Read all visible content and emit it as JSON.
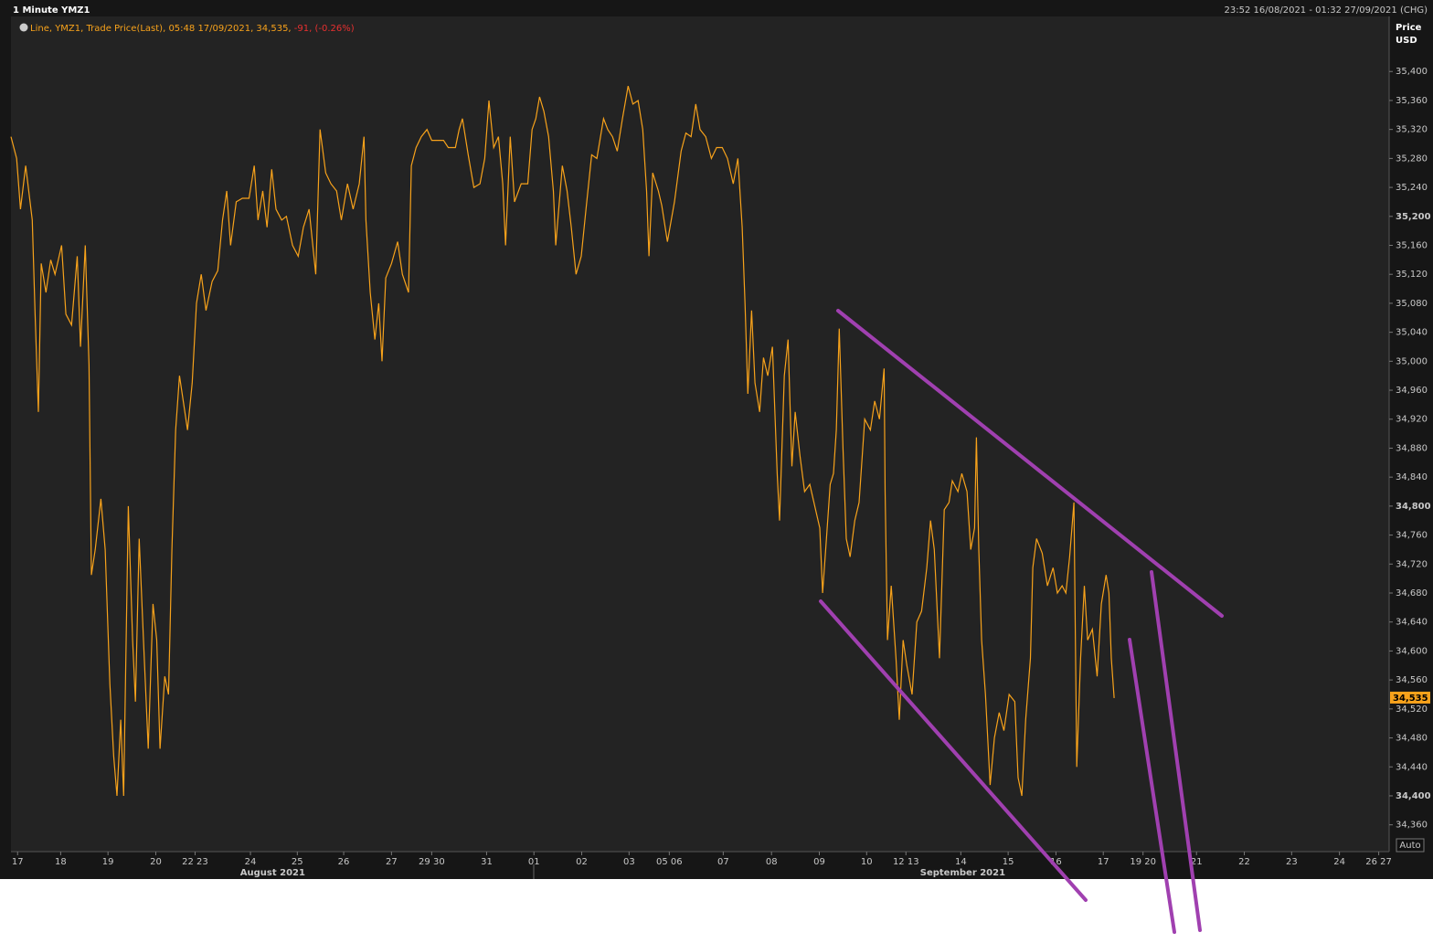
{
  "chart_data": {
    "type": "line",
    "title": "1 Minute YMZ1",
    "date_range": "23:52 16/08/2021 - 01:32 27/09/2021 (CHG)",
    "legend_change": "-91, (-0.26%)",
    "y_title": [
      "Price",
      "USD"
    ],
    "last_price_label": "34,535",
    "scale_button": "Auto",
    "x": [
      -0.14,
      -0.02,
      0.06,
      0.17,
      0.31,
      0.37,
      0.44,
      0.5,
      0.6,
      0.7,
      0.79,
      0.93,
      1.02,
      1.14,
      1.26,
      1.33,
      1.43,
      1.51,
      1.56,
      1.64,
      1.76,
      1.85,
      1.95,
      2.03,
      2.1,
      2.18,
      2.24,
      2.34,
      2.43,
      2.49,
      2.57,
      2.66,
      2.76,
      2.86,
      2.94,
      3.01,
      3.11,
      3.19,
      3.26,
      3.34,
      3.42,
      3.5,
      3.59,
      3.69,
      3.78,
      3.88,
      3.98,
      4.11,
      4.23,
      4.33,
      4.42,
      4.5,
      4.62,
      4.75,
      4.89,
      5.0,
      5.08,
      5.18,
      5.27,
      5.37,
      5.46,
      5.58,
      5.68,
      5.81,
      5.93,
      6.04,
      6.16,
      6.3,
      6.39,
      6.51,
      6.62,
      6.74,
      6.84,
      6.97,
      7.09,
      7.22,
      7.32,
      7.36,
      7.45,
      7.55,
      7.63,
      7.7,
      7.78,
      7.9,
      8.03,
      8.13,
      8.26,
      8.32,
      8.42,
      8.53,
      8.65,
      8.75,
      8.86,
      9.0,
      9.1,
      9.25,
      9.33,
      9.4,
      9.52,
      9.64,
      9.77,
      9.87,
      9.96,
      10.06,
      10.16,
      10.25,
      10.31,
      10.41,
      10.5,
      10.64,
      10.78,
      10.87,
      10.95,
      11.03,
      11.12,
      11.22,
      11.32,
      11.37,
      11.51,
      11.61,
      11.7,
      11.8,
      11.91,
      12.01,
      12.13,
      12.24,
      12.38,
      12.47,
      12.57,
      12.67,
      12.78,
      12.9,
      13.0,
      13.11,
      13.21,
      13.29,
      13.34,
      13.42,
      13.54,
      13.61,
      13.73,
      13.88,
      14.02,
      14.12,
      14.23,
      14.33,
      14.42,
      14.54,
      14.66,
      14.77,
      14.89,
      15.0,
      15.12,
      15.22,
      15.31,
      15.37,
      15.43,
      15.51,
      15.58,
      15.68,
      15.76,
      15.85,
      15.95,
      16.05,
      16.1,
      16.2,
      16.28,
      16.36,
      16.43,
      16.53,
      16.63,
      16.74,
      16.86,
      16.95,
      17.01,
      17.09,
      17.17,
      17.24,
      17.3,
      17.36,
      17.44,
      17.51,
      17.59,
      17.69,
      17.78,
      17.9,
      18.02,
      18.11,
      18.21,
      18.31,
      18.33,
      18.38,
      18.46,
      18.56,
      18.63,
      18.71,
      18.79,
      18.9,
      19.0,
      19.1,
      19.21,
      19.29,
      19.37,
      19.48,
      19.58,
      19.68,
      19.75,
      19.87,
      19.95,
      20.06,
      20.14,
      20.22,
      20.26,
      20.31,
      20.37,
      20.45,
      20.55,
      20.64,
      20.74,
      20.84,
      20.95,
      21.07,
      21.14,
      21.22,
      21.3,
      21.4,
      21.45,
      21.53,
      21.65,
      21.76,
      21.88,
      21.97,
      22.07,
      22.15,
      22.23,
      22.32,
      22.38,
      22.46,
      22.54,
      22.61,
      22.71,
      22.81,
      22.9,
      23.0,
      23.06,
      23.11,
      23.17
    ],
    "series": [
      {
        "name": "Line, YMZ1, Trade Price(Last), 05:48 17/09/2021, 34,535,",
        "color": "#f7a21b",
        "values": [
          35310,
          35280,
          35210,
          35270,
          35195,
          35065,
          34930,
          35135,
          35095,
          35140,
          35120,
          35160,
          35065,
          35050,
          35145,
          35020,
          35160,
          34995,
          34705,
          34740,
          34810,
          34740,
          34555,
          34455,
          34400,
          34505,
          34400,
          34800,
          34615,
          34530,
          34755,
          34615,
          34465,
          34665,
          34615,
          34465,
          34565,
          34540,
          34740,
          34905,
          34980,
          34945,
          34905,
          34970,
          35080,
          35120,
          35070,
          35110,
          35125,
          35195,
          35235,
          35160,
          35220,
          35225,
          35225,
          35270,
          35195,
          35235,
          35185,
          35265,
          35210,
          35195,
          35200,
          35160,
          35145,
          35185,
          35210,
          35120,
          35320,
          35260,
          35245,
          35235,
          35195,
          35245,
          35210,
          35245,
          35310,
          35195,
          35095,
          35030,
          35080,
          35000,
          35115,
          35135,
          35165,
          35120,
          35095,
          35270,
          35295,
          35310,
          35320,
          35305,
          35305,
          35305,
          35295,
          35295,
          35320,
          35335,
          35285,
          35240,
          35245,
          35280,
          35360,
          35295,
          35310,
          35245,
          35160,
          35310,
          35220,
          35245,
          35245,
          35320,
          35335,
          35365,
          35345,
          35310,
          35235,
          35160,
          35270,
          35235,
          35185,
          35120,
          35145,
          35210,
          35285,
          35280,
          35335,
          35320,
          35310,
          35290,
          35335,
          35380,
          35355,
          35360,
          35320,
          35235,
          35145,
          35260,
          35235,
          35215,
          35165,
          35220,
          35290,
          35315,
          35310,
          35355,
          35320,
          35310,
          35280,
          35295,
          35295,
          35280,
          35245,
          35280,
          35185,
          35080,
          34955,
          35070,
          34970,
          34930,
          35005,
          34980,
          35020,
          34845,
          34780,
          34980,
          35030,
          34855,
          34930,
          34870,
          34820,
          34830,
          34795,
          34770,
          34680,
          34755,
          34830,
          34845,
          34905,
          35045,
          34880,
          34755,
          34730,
          34780,
          34805,
          34920,
          34905,
          34945,
          34920,
          34990,
          34820,
          34615,
          34690,
          34590,
          34505,
          34615,
          34580,
          34540,
          34640,
          34655,
          34715,
          34780,
          34740,
          34590,
          34795,
          34805,
          34835,
          34820,
          34845,
          34820,
          34740,
          34770,
          34895,
          34740,
          34615,
          34540,
          34415,
          34480,
          34515,
          34490,
          34540,
          34530,
          34425,
          34400,
          34505,
          34590,
          34715,
          34755,
          34735,
          34690,
          34715,
          34680,
          34690,
          34680,
          34730,
          34805,
          34440,
          34590,
          34690,
          34615,
          34630,
          34565,
          34665,
          34705,
          34680,
          34590,
          34535
        ]
      }
    ],
    "xlim": [
      -0.14,
      28.98
    ],
    "xticks": [
      {
        "value": 0,
        "label": "17"
      },
      {
        "value": 0.91,
        "label": "18"
      },
      {
        "value": 1.91,
        "label": "19"
      },
      {
        "value": 2.92,
        "label": "20"
      },
      {
        "value": 3.75,
        "label": "22 23"
      },
      {
        "value": 4.92,
        "label": "24"
      },
      {
        "value": 5.91,
        "label": "25"
      },
      {
        "value": 6.89,
        "label": "26"
      },
      {
        "value": 7.9,
        "label": "27"
      },
      {
        "value": 8.75,
        "label": "29 30"
      },
      {
        "value": 9.91,
        "label": "31"
      },
      {
        "value": 10.91,
        "label": "01"
      },
      {
        "value": 11.92,
        "label": "02"
      },
      {
        "value": 12.92,
        "label": "03"
      },
      {
        "value": 13.77,
        "label": "05 06"
      },
      {
        "value": 14.91,
        "label": "07"
      },
      {
        "value": 15.93,
        "label": "08"
      },
      {
        "value": 16.94,
        "label": "09"
      },
      {
        "value": 17.94,
        "label": "10"
      },
      {
        "value": 18.77,
        "label": "12 13"
      },
      {
        "value": 19.93,
        "label": "14"
      },
      {
        "value": 20.93,
        "label": "15"
      },
      {
        "value": 21.94,
        "label": "16"
      },
      {
        "value": 22.94,
        "label": "17"
      },
      {
        "value": 23.78,
        "label": "19 20"
      },
      {
        "value": 24.91,
        "label": "21"
      },
      {
        "value": 25.92,
        "label": "22"
      },
      {
        "value": 26.92,
        "label": "23"
      },
      {
        "value": 27.93,
        "label": "24"
      },
      {
        "value": 28.76,
        "label": "26 27"
      }
    ],
    "month_labels": [
      {
        "value": 5.39,
        "label": "August 2021"
      },
      {
        "value": 19.97,
        "label": "September 2021"
      }
    ],
    "ylim": [
      34323,
      35476
    ],
    "yticks": [
      {
        "value": 34360,
        "label": "34,360"
      },
      {
        "value": 34400,
        "label": "34,400"
      },
      {
        "value": 34440,
        "label": "34,440"
      },
      {
        "value": 34480,
        "label": "34,480"
      },
      {
        "value": 34520,
        "label": "34,520"
      },
      {
        "value": 34560,
        "label": "34,560"
      },
      {
        "value": 34600,
        "label": "34,600"
      },
      {
        "value": 34640,
        "label": "34,640"
      },
      {
        "value": 34680,
        "label": "34,680"
      },
      {
        "value": 34720,
        "label": "34,720"
      },
      {
        "value": 34760,
        "label": "34,760"
      },
      {
        "value": 34800,
        "label": "34,800"
      },
      {
        "value": 34840,
        "label": "34,840"
      },
      {
        "value": 34880,
        "label": "34,880"
      },
      {
        "value": 34920,
        "label": "34,920"
      },
      {
        "value": 34960,
        "label": "34,960"
      },
      {
        "value": 35000,
        "label": "35,000"
      },
      {
        "value": 35040,
        "label": "35,040"
      },
      {
        "value": 35080,
        "label": "35,080"
      },
      {
        "value": 35120,
        "label": "35,120"
      },
      {
        "value": 35160,
        "label": "35,160"
      },
      {
        "value": 35200,
        "label": "35,200"
      },
      {
        "value": 35240,
        "label": "35,240"
      },
      {
        "value": 35280,
        "label": "35,280"
      },
      {
        "value": 35320,
        "label": "35,320"
      },
      {
        "value": 35360,
        "label": "35,360"
      },
      {
        "value": 35400,
        "label": "35,400"
      }
    ]
  }
}
